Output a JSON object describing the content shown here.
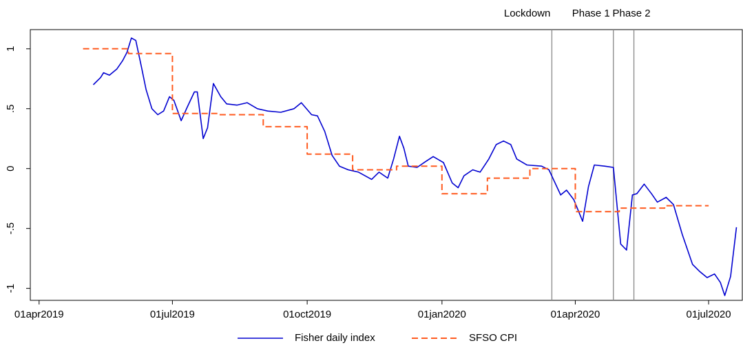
{
  "chart_data": {
    "type": "line",
    "xlim": [
      "2019-03-26",
      "2020-07-24"
    ],
    "xticks": [
      {
        "value": "2019-04-01",
        "label": "01apr2019"
      },
      {
        "value": "2019-07-01",
        "label": "01jul2019"
      },
      {
        "value": "2019-10-01",
        "label": "01oct2019"
      },
      {
        "value": "2020-01-01",
        "label": "01jan2020"
      },
      {
        "value": "2020-04-01",
        "label": "01apr2020"
      },
      {
        "value": "2020-07-01",
        "label": "01jul2020"
      }
    ],
    "ylim": [
      -1.1,
      1.16
    ],
    "yticks": [
      {
        "value": 1,
        "label": "1"
      },
      {
        "value": 0.5,
        "label": ".5"
      },
      0,
      {
        "value": -0.5,
        "label": "-.5"
      },
      {
        "value": -1,
        "label": "-1"
      }
    ],
    "events": [
      {
        "date": "2020-03-16",
        "label": "Lockdown"
      },
      {
        "date": "2020-04-27",
        "label": "Phase 1"
      },
      {
        "date": "2020-05-11",
        "label": "Phase 2"
      }
    ],
    "series": [
      {
        "name": "Fisher daily index",
        "color": "#0000d0",
        "style": "solid",
        "x": [
          "2019-05-08",
          "2019-05-13",
          "2019-05-15",
          "2019-05-19",
          "2019-05-24",
          "2019-05-28",
          "2019-05-31",
          "2019-06-03",
          "2019-06-06",
          "2019-06-10",
          "2019-06-13",
          "2019-06-17",
          "2019-06-21",
          "2019-06-25",
          "2019-06-29",
          "2019-07-02",
          "2019-07-07",
          "2019-07-11",
          "2019-07-16",
          "2019-07-18",
          "2019-07-22",
          "2019-07-25",
          "2019-07-29",
          "2019-08-03",
          "2019-08-07",
          "2019-08-14",
          "2019-08-21",
          "2019-08-28",
          "2019-09-04",
          "2019-09-13",
          "2019-09-22",
          "2019-09-27",
          "2019-10-04",
          "2019-10-08",
          "2019-10-13",
          "2019-10-18",
          "2019-10-23",
          "2019-10-29",
          "2019-11-05",
          "2019-11-14",
          "2019-11-19",
          "2019-11-25",
          "2019-11-29",
          "2019-12-03",
          "2019-12-06",
          "2019-12-09",
          "2019-12-15",
          "2019-12-21",
          "2019-12-26",
          "2020-01-02",
          "2020-01-08",
          "2020-01-12",
          "2020-01-16",
          "2020-01-22",
          "2020-01-27",
          "2020-02-02",
          "2020-02-07",
          "2020-02-12",
          "2020-02-17",
          "2020-02-21",
          "2020-02-28",
          "2020-03-09",
          "2020-03-14",
          "2020-03-22",
          "2020-03-26",
          "2020-03-31",
          "2020-04-06",
          "2020-04-10",
          "2020-04-14",
          "2020-04-21",
          "2020-04-27",
          "2020-05-02",
          "2020-05-06",
          "2020-05-10",
          "2020-05-13",
          "2020-05-18",
          "2020-05-23",
          "2020-05-27",
          "2020-06-02",
          "2020-06-07",
          "2020-06-13",
          "2020-06-20",
          "2020-06-25",
          "2020-06-30",
          "2020-07-05",
          "2020-07-09",
          "2020-07-12",
          "2020-07-16",
          "2020-07-20"
        ],
        "values": [
          0.7,
          0.76,
          0.8,
          0.78,
          0.83,
          0.9,
          0.97,
          1.09,
          1.07,
          0.84,
          0.66,
          0.5,
          0.45,
          0.48,
          0.6,
          0.57,
          0.4,
          0.51,
          0.64,
          0.64,
          0.25,
          0.34,
          0.71,
          0.6,
          0.54,
          0.53,
          0.55,
          0.5,
          0.48,
          0.47,
          0.5,
          0.55,
          0.45,
          0.44,
          0.31,
          0.11,
          0.02,
          -0.01,
          -0.03,
          -0.09,
          -0.03,
          -0.08,
          0.08,
          0.27,
          0.17,
          0.02,
          0.01,
          0.06,
          0.1,
          0.05,
          -0.12,
          -0.16,
          -0.06,
          -0.01,
          -0.03,
          0.08,
          0.2,
          0.23,
          0.2,
          0.08,
          0.03,
          0.02,
          -0.01,
          -0.22,
          -0.18,
          -0.26,
          -0.44,
          -0.15,
          0.03,
          0.02,
          0.01,
          -0.63,
          -0.68,
          -0.22,
          -0.21,
          -0.13,
          -0.21,
          -0.28,
          -0.24,
          -0.3,
          -0.55,
          -0.8,
          -0.86,
          -0.91,
          -0.88,
          -0.95,
          -1.06,
          -0.9,
          -0.49
        ]
      },
      {
        "name": "SFSO CPI",
        "color": "#ff5a1f",
        "style": "dashed",
        "step": "month",
        "x": [
          "2019-05",
          "2019-06",
          "2019-07",
          "2019-08",
          "2019-09",
          "2019-10",
          "2019-11",
          "2019-12",
          "2020-01",
          "2020-02",
          "2020-03",
          "2020-04",
          "2020-05",
          "2020-06"
        ],
        "values": [
          1.0,
          0.96,
          0.46,
          0.45,
          0.35,
          0.12,
          -0.01,
          0.02,
          -0.21,
          -0.08,
          0.0,
          -0.36,
          -0.33,
          -0.31
        ]
      }
    ]
  }
}
